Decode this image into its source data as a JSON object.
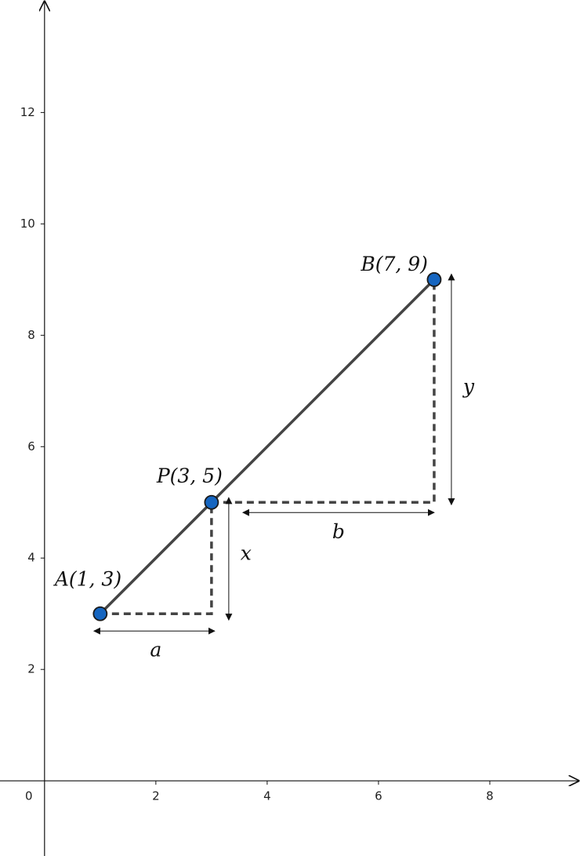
{
  "chart_data": {
    "type": "scatter",
    "x": [
      1,
      3,
      7
    ],
    "series": [
      {
        "values": [
          3,
          5,
          9
        ],
        "color": "#1565c0"
      }
    ],
    "point_labels": [
      "A(1, 3)",
      "P(3, 5)",
      "B(7, 9)"
    ],
    "dimension_labels": [
      "a",
      "x",
      "b",
      "y"
    ],
    "xlim": [
      -0.8,
      9.62
    ],
    "ylim": [
      -1.35,
      14.02
    ],
    "xticks": [
      0,
      2,
      4,
      6,
      8
    ],
    "yticks": [
      2,
      4,
      6,
      8,
      10,
      12
    ]
  }
}
